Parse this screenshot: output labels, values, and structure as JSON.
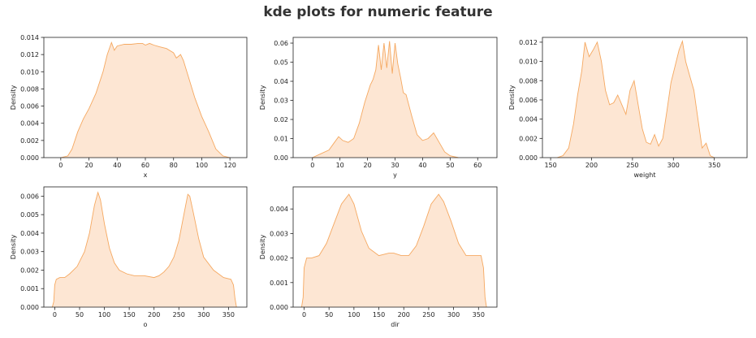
{
  "figure": {
    "title": "kde plots for numeric feature"
  },
  "style": {
    "fill_color": "#fde6d3",
    "line_color": "#f5a860",
    "axis_color": "#222222"
  },
  "chart_data": [
    {
      "type": "area",
      "xlabel": "x",
      "ylabel": "Density",
      "xlim": [
        -12,
        132
      ],
      "ylim": [
        0,
        0.014
      ],
      "xticks": [
        0,
        20,
        40,
        60,
        80,
        100,
        120
      ],
      "yticks": [
        0.0,
        0.002,
        0.004,
        0.006,
        0.008,
        0.01,
        0.012,
        0.014
      ],
      "ytick_labels": [
        "0.000",
        "0.002",
        "0.004",
        "0.006",
        "0.008",
        "0.010",
        "0.012",
        "0.014"
      ],
      "x": [
        0,
        5,
        8,
        12,
        16,
        20,
        25,
        30,
        33,
        36,
        38,
        40,
        45,
        50,
        55,
        58,
        60,
        63,
        66,
        70,
        75,
        80,
        82,
        85,
        87,
        90,
        95,
        100,
        105,
        110,
        115,
        120
      ],
      "y": [
        0.0,
        0.0002,
        0.001,
        0.003,
        0.0045,
        0.0057,
        0.0075,
        0.01,
        0.012,
        0.0134,
        0.0125,
        0.013,
        0.0132,
        0.0132,
        0.0133,
        0.0133,
        0.0131,
        0.0133,
        0.0131,
        0.0129,
        0.0127,
        0.0122,
        0.0116,
        0.012,
        0.0113,
        0.0097,
        0.007,
        0.0048,
        0.003,
        0.001,
        0.0002,
        0.0
      ]
    },
    {
      "type": "area",
      "xlabel": "y",
      "ylabel": "Density",
      "xlim": [
        -7,
        67
      ],
      "ylim": [
        0,
        0.063
      ],
      "xticks": [
        0,
        10,
        20,
        30,
        40,
        50,
        60
      ],
      "yticks": [
        0.0,
        0.01,
        0.02,
        0.03,
        0.04,
        0.05,
        0.06
      ],
      "ytick_labels": [
        "0.00",
        "0.01",
        "0.02",
        "0.03",
        "0.04",
        "0.05",
        "0.06"
      ],
      "x": [
        0,
        3,
        6,
        8,
        9.5,
        11,
        13,
        15,
        17,
        19,
        21,
        22,
        23,
        24,
        25,
        26,
        27,
        28,
        29,
        30,
        31,
        32,
        33,
        34,
        36,
        38,
        40,
        42,
        44,
        46,
        48,
        50,
        53
      ],
      "y": [
        0.0,
        0.002,
        0.004,
        0.008,
        0.011,
        0.009,
        0.008,
        0.01,
        0.018,
        0.029,
        0.038,
        0.041,
        0.046,
        0.059,
        0.046,
        0.06,
        0.047,
        0.061,
        0.044,
        0.06,
        0.049,
        0.042,
        0.034,
        0.033,
        0.022,
        0.012,
        0.009,
        0.01,
        0.013,
        0.008,
        0.003,
        0.001,
        0.0
      ]
    },
    {
      "type": "area",
      "xlabel": "weight",
      "ylabel": "Density",
      "xlim": [
        140,
        390
      ],
      "ylim": [
        0,
        0.0125
      ],
      "xticks": [
        150,
        200,
        250,
        300,
        350
      ],
      "yticks": [
        0.0,
        0.002,
        0.004,
        0.006,
        0.008,
        0.01,
        0.012
      ],
      "ytick_labels": [
        "0.000",
        "0.002",
        "0.004",
        "0.006",
        "0.008",
        "0.010",
        "0.012"
      ],
      "x": [
        158,
        165,
        172,
        178,
        183,
        188,
        192,
        197,
        202,
        207,
        212,
        217,
        222,
        227,
        232,
        237,
        242,
        247,
        252,
        257,
        262,
        267,
        272,
        277,
        282,
        287,
        292,
        297,
        302,
        307,
        311,
        315,
        320,
        325,
        330,
        335,
        340,
        345,
        350
      ],
      "y": [
        0.0,
        0.0002,
        0.001,
        0.0035,
        0.0065,
        0.009,
        0.012,
        0.0105,
        0.0112,
        0.012,
        0.01,
        0.007,
        0.0055,
        0.0057,
        0.0065,
        0.0055,
        0.0045,
        0.007,
        0.008,
        0.0055,
        0.003,
        0.0016,
        0.0014,
        0.0024,
        0.0012,
        0.002,
        0.0048,
        0.0078,
        0.0095,
        0.0112,
        0.0121,
        0.01,
        0.0085,
        0.007,
        0.004,
        0.001,
        0.0015,
        0.0002,
        0.0
      ]
    },
    {
      "type": "area",
      "xlabel": "o",
      "ylabel": "Density",
      "xlim": [
        -22,
        387
      ],
      "ylim": [
        0,
        0.0065
      ],
      "xticks": [
        0,
        50,
        100,
        150,
        200,
        250,
        300,
        350
      ],
      "yticks": [
        0.0,
        0.001,
        0.002,
        0.003,
        0.004,
        0.005,
        0.006
      ],
      "ytick_labels": [
        "0.000",
        "0.001",
        "0.002",
        "0.003",
        "0.004",
        "0.005",
        "0.006"
      ],
      "x": [
        -5,
        -2,
        0,
        3,
        10,
        20,
        30,
        45,
        60,
        70,
        80,
        87,
        92,
        100,
        110,
        120,
        130,
        145,
        160,
        180,
        200,
        210,
        220,
        230,
        240,
        250,
        260,
        268,
        272,
        280,
        290,
        300,
        320,
        340,
        355,
        360,
        363,
        366
      ],
      "y": [
        0.0,
        0.0003,
        0.0012,
        0.0015,
        0.0016,
        0.0016,
        0.0018,
        0.0022,
        0.003,
        0.004,
        0.0055,
        0.0062,
        0.0058,
        0.0045,
        0.0032,
        0.0024,
        0.002,
        0.0018,
        0.0017,
        0.0017,
        0.0016,
        0.0017,
        0.0019,
        0.0022,
        0.0027,
        0.0036,
        0.005,
        0.0061,
        0.006,
        0.005,
        0.0037,
        0.0027,
        0.002,
        0.0016,
        0.0015,
        0.0012,
        0.0005,
        0.0
      ]
    },
    {
      "type": "area",
      "xlabel": "dir",
      "ylabel": "Density",
      "xlim": [
        -22,
        387
      ],
      "ylim": [
        0,
        0.0049
      ],
      "xticks": [
        0,
        50,
        100,
        150,
        200,
        250,
        300,
        350
      ],
      "yticks": [
        0.0,
        0.001,
        0.002,
        0.003,
        0.004
      ],
      "ytick_labels": [
        "0.000",
        "0.001",
        "0.002",
        "0.003",
        "0.004"
      ],
      "x": [
        -5,
        -2,
        0,
        5,
        15,
        30,
        45,
        60,
        75,
        90,
        100,
        115,
        130,
        150,
        170,
        180,
        195,
        210,
        225,
        240,
        255,
        270,
        280,
        295,
        310,
        325,
        340,
        355,
        360,
        363,
        366
      ],
      "y": [
        0.0,
        0.0004,
        0.0016,
        0.002,
        0.002,
        0.0021,
        0.0026,
        0.0034,
        0.0042,
        0.0046,
        0.0042,
        0.0031,
        0.0024,
        0.0021,
        0.0022,
        0.0022,
        0.0021,
        0.0021,
        0.0025,
        0.0033,
        0.0042,
        0.0046,
        0.0043,
        0.0035,
        0.0026,
        0.0021,
        0.0021,
        0.0021,
        0.0016,
        0.0004,
        0.0
      ]
    }
  ]
}
